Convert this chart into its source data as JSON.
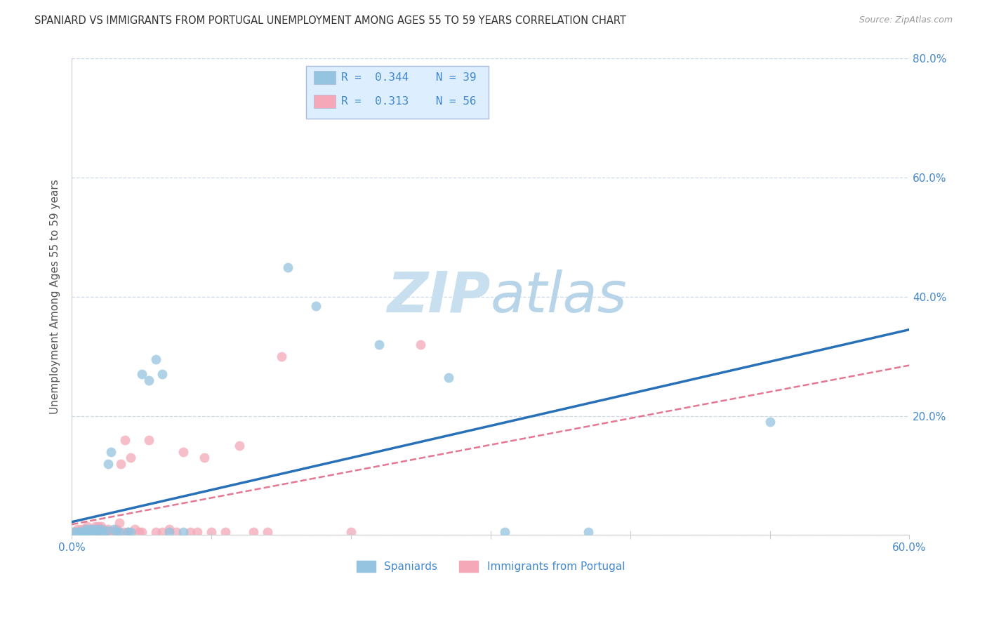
{
  "title": "SPANIARD VS IMMIGRANTS FROM PORTUGAL UNEMPLOYMENT AMONG AGES 55 TO 59 YEARS CORRELATION CHART",
  "source": "Source: ZipAtlas.com",
  "ylabel": "Unemployment Among Ages 55 to 59 years",
  "xlim": [
    0.0,
    0.6
  ],
  "ylim": [
    0.0,
    0.8
  ],
  "xticks": [
    0.0,
    0.1,
    0.2,
    0.3,
    0.4,
    0.5,
    0.6
  ],
  "yticks": [
    0.0,
    0.2,
    0.4,
    0.6,
    0.8
  ],
  "spaniards_R": 0.344,
  "spaniards_N": 39,
  "portugal_R": 0.313,
  "portugal_N": 56,
  "blue_color": "#94c4e0",
  "pink_color": "#f4a8b8",
  "line_blue": "#2870b8",
  "line_pink": "#e06080",
  "axis_color": "#4488cc",
  "grid_color": "#ccd9e8",
  "legend_bg": "#ddeeff",
  "legend_border": "#aabbdd",
  "blue_line_start_y": 0.022,
  "blue_line_end_y": 0.345,
  "pink_line_start_y": 0.018,
  "pink_line_end_y": 0.285,
  "spaniards_x": [
    0.002,
    0.004,
    0.005,
    0.006,
    0.007,
    0.008,
    0.009,
    0.01,
    0.01,
    0.012,
    0.013,
    0.015,
    0.016,
    0.018,
    0.019,
    0.02,
    0.021,
    0.022,
    0.025,
    0.026,
    0.028,
    0.03,
    0.032,
    0.034,
    0.04,
    0.042,
    0.05,
    0.055,
    0.06,
    0.065,
    0.07,
    0.08,
    0.155,
    0.175,
    0.22,
    0.27,
    0.31,
    0.37,
    0.5
  ],
  "spaniards_y": [
    0.005,
    0.005,
    0.005,
    0.005,
    0.005,
    0.005,
    0.005,
    0.005,
    0.01,
    0.005,
    0.01,
    0.005,
    0.01,
    0.01,
    0.005,
    0.005,
    0.01,
    0.005,
    0.008,
    0.12,
    0.14,
    0.01,
    0.005,
    0.005,
    0.005,
    0.005,
    0.27,
    0.26,
    0.295,
    0.27,
    0.005,
    0.005,
    0.45,
    0.385,
    0.32,
    0.265,
    0.005,
    0.005,
    0.19
  ],
  "portugal_x": [
    0.001,
    0.002,
    0.003,
    0.004,
    0.004,
    0.005,
    0.006,
    0.007,
    0.008,
    0.009,
    0.01,
    0.01,
    0.011,
    0.012,
    0.013,
    0.014,
    0.015,
    0.016,
    0.017,
    0.018,
    0.019,
    0.02,
    0.021,
    0.022,
    0.023,
    0.025,
    0.026,
    0.028,
    0.03,
    0.032,
    0.034,
    0.035,
    0.037,
    0.038,
    0.04,
    0.042,
    0.045,
    0.048,
    0.05,
    0.055,
    0.06,
    0.065,
    0.07,
    0.075,
    0.08,
    0.085,
    0.09,
    0.095,
    0.1,
    0.11,
    0.12,
    0.13,
    0.14,
    0.15,
    0.2,
    0.25
  ],
  "portugal_y": [
    0.005,
    0.005,
    0.005,
    0.005,
    0.01,
    0.005,
    0.005,
    0.01,
    0.005,
    0.01,
    0.005,
    0.01,
    0.015,
    0.005,
    0.005,
    0.01,
    0.005,
    0.01,
    0.015,
    0.01,
    0.015,
    0.005,
    0.015,
    0.01,
    0.005,
    0.005,
    0.01,
    0.005,
    0.005,
    0.01,
    0.02,
    0.12,
    0.005,
    0.16,
    0.005,
    0.13,
    0.01,
    0.005,
    0.005,
    0.16,
    0.005,
    0.005,
    0.01,
    0.005,
    0.14,
    0.005,
    0.005,
    0.13,
    0.005,
    0.005,
    0.15,
    0.005,
    0.005,
    0.3,
    0.005,
    0.32
  ]
}
